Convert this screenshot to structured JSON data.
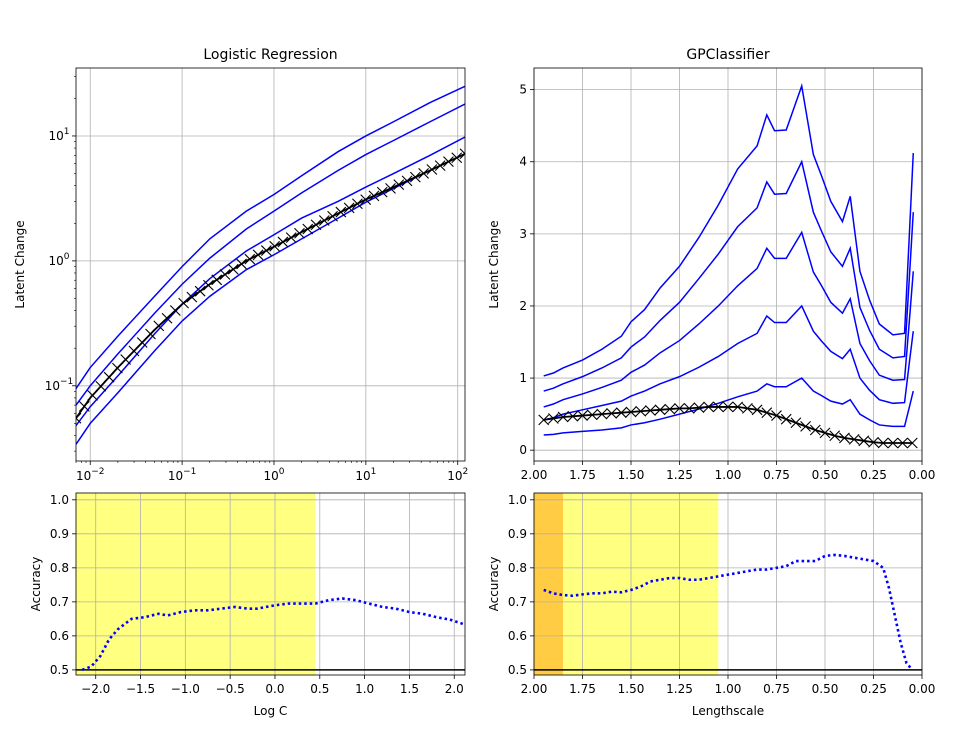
{
  "chart_data": [
    {
      "id": "lr_top",
      "type": "line",
      "title": "Logistic Regression",
      "xlabel": "",
      "ylabel": "Latent Change",
      "xscale": "log",
      "yscale": "log",
      "xlim": [
        0.007,
        120
      ],
      "ylim": [
        0.025,
        35
      ],
      "grid": true,
      "xticks": [
        {
          "value": 0.01,
          "base": "10",
          "exp": "−2"
        },
        {
          "value": 0.1,
          "base": "10",
          "exp": "−1"
        },
        {
          "value": 1,
          "base": "10",
          "exp": "0"
        },
        {
          "value": 10,
          "base": "10",
          "exp": "1"
        },
        {
          "value": 100,
          "base": "10",
          "exp": "2"
        }
      ],
      "yticks": [
        {
          "value": 0.1,
          "base": "10",
          "exp": "−1"
        },
        {
          "value": 1,
          "base": "10",
          "exp": "0"
        },
        {
          "value": 10,
          "base": "10",
          "exp": "1"
        }
      ],
      "colors": {
        "series": "#0000ff",
        "mean": "#000000"
      },
      "x": [
        0.007,
        0.01,
        0.02,
        0.05,
        0.1,
        0.2,
        0.5,
        1,
        2,
        5,
        10,
        20,
        50,
        120
      ],
      "series": [
        {
          "values": [
            0.095,
            0.14,
            0.25,
            0.52,
            0.9,
            1.5,
            2.5,
            3.4,
            4.8,
            7.5,
            10.0,
            13.0,
            18.5,
            25.0
          ]
        },
        {
          "values": [
            0.07,
            0.1,
            0.18,
            0.38,
            0.65,
            1.05,
            1.8,
            2.5,
            3.5,
            5.3,
            7.1,
            9.2,
            13.0,
            18.0
          ]
        },
        {
          "values": [
            0.048,
            0.068,
            0.12,
            0.26,
            0.45,
            0.72,
            1.2,
            1.62,
            2.2,
            3.0,
            3.9,
            5.0,
            7.0,
            9.8
          ]
        },
        {
          "values": [
            0.034,
            0.05,
            0.088,
            0.19,
            0.33,
            0.52,
            0.85,
            1.12,
            1.5,
            2.2,
            2.95,
            3.8,
            5.3,
            7.2
          ]
        }
      ],
      "mean": {
        "values": [
          0.055,
          0.08,
          0.14,
          0.28,
          0.45,
          0.65,
          1.0,
          1.3,
          1.7,
          2.4,
          3.1,
          3.9,
          5.3,
          7.2
        ],
        "marker": "x"
      }
    },
    {
      "id": "gp_top",
      "type": "line",
      "title": "GPClassifier",
      "xlabel": "",
      "ylabel": "Latent Change",
      "xlim": [
        2.0,
        0.0
      ],
      "ylim": [
        -0.15,
        5.3
      ],
      "grid": true,
      "xticks": [
        "2.00",
        "1.75",
        "1.50",
        "1.25",
        "1.00",
        "0.75",
        "0.50",
        "0.25",
        "0.00"
      ],
      "yticks": [
        "0",
        "1",
        "2",
        "3",
        "4",
        "5"
      ],
      "colors": {
        "series": "#0000ff",
        "mean": "#000000"
      },
      "x": [
        1.95,
        1.9,
        1.85,
        1.75,
        1.65,
        1.55,
        1.5,
        1.43,
        1.35,
        1.25,
        1.15,
        1.05,
        0.95,
        0.85,
        0.8,
        0.76,
        0.7,
        0.62,
        0.56,
        0.52,
        0.47,
        0.41,
        0.37,
        0.32,
        0.27,
        0.22,
        0.15,
        0.09,
        0.065,
        0.045
      ],
      "series": [
        {
          "values": [
            1.03,
            1.07,
            1.14,
            1.25,
            1.4,
            1.58,
            1.78,
            1.95,
            2.25,
            2.55,
            2.95,
            3.4,
            3.9,
            4.22,
            4.65,
            4.43,
            4.44,
            5.05,
            4.1,
            3.82,
            3.45,
            3.17,
            3.52,
            2.48,
            2.08,
            1.75,
            1.6,
            1.62,
            3.0,
            4.12
          ]
        },
        {
          "values": [
            0.82,
            0.86,
            0.92,
            1.02,
            1.14,
            1.28,
            1.43,
            1.57,
            1.8,
            2.05,
            2.38,
            2.72,
            3.1,
            3.36,
            3.72,
            3.55,
            3.56,
            4.0,
            3.3,
            3.05,
            2.75,
            2.55,
            2.8,
            1.98,
            1.66,
            1.4,
            1.28,
            1.3,
            2.4,
            3.3
          ]
        },
        {
          "values": [
            0.6,
            0.64,
            0.7,
            0.78,
            0.87,
            0.97,
            1.08,
            1.18,
            1.35,
            1.52,
            1.75,
            2.0,
            2.28,
            2.52,
            2.8,
            2.66,
            2.66,
            3.02,
            2.47,
            2.29,
            2.05,
            1.9,
            2.1,
            1.48,
            1.24,
            1.04,
            0.97,
            0.98,
            1.8,
            2.48
          ]
        },
        {
          "values": [
            0.42,
            0.45,
            0.5,
            0.56,
            0.62,
            0.68,
            0.75,
            0.82,
            0.92,
            1.02,
            1.15,
            1.3,
            1.48,
            1.62,
            1.86,
            1.77,
            1.77,
            2.0,
            1.65,
            1.52,
            1.37,
            1.27,
            1.4,
            1.0,
            0.83,
            0.7,
            0.65,
            0.66,
            1.22,
            1.65
          ]
        },
        {
          "values": [
            0.21,
            0.22,
            0.24,
            0.26,
            0.28,
            0.31,
            0.35,
            0.38,
            0.43,
            0.5,
            0.57,
            0.65,
            0.74,
            0.82,
            0.92,
            0.88,
            0.88,
            1.0,
            0.82,
            0.76,
            0.68,
            0.64,
            0.7,
            0.5,
            0.42,
            0.35,
            0.33,
            0.33,
            0.6,
            0.82
          ]
        }
      ],
      "mean": {
        "x": [
          1.95,
          1.9,
          1.85,
          1.8,
          1.75,
          1.7,
          1.65,
          1.6,
          1.55,
          1.5,
          1.45,
          1.4,
          1.35,
          1.3,
          1.25,
          1.2,
          1.15,
          1.1,
          1.05,
          1.0,
          0.95,
          0.9,
          0.85,
          0.8,
          0.75,
          0.7,
          0.65,
          0.6,
          0.55,
          0.5,
          0.45,
          0.4,
          0.35,
          0.3,
          0.25,
          0.2,
          0.15,
          0.1,
          0.05
        ],
        "values": [
          0.42,
          0.44,
          0.46,
          0.47,
          0.48,
          0.49,
          0.5,
          0.51,
          0.52,
          0.53,
          0.54,
          0.55,
          0.56,
          0.57,
          0.58,
          0.58,
          0.59,
          0.6,
          0.6,
          0.6,
          0.6,
          0.58,
          0.56,
          0.52,
          0.48,
          0.43,
          0.38,
          0.33,
          0.28,
          0.24,
          0.2,
          0.17,
          0.15,
          0.13,
          0.11,
          0.1,
          0.1,
          0.1,
          0.1
        ],
        "marker": "x"
      }
    },
    {
      "id": "lr_bottom",
      "type": "line",
      "title": "",
      "xlabel": "Log C",
      "ylabel": "Accuracy",
      "xlim": [
        -2.22,
        2.12
      ],
      "ylim": [
        0.485,
        1.02
      ],
      "grid": true,
      "xticks": [
        {
          "value": -2.0,
          "label": "−2.0"
        },
        {
          "value": -1.5,
          "label": "−1.5"
        },
        {
          "value": -1.0,
          "label": "−1.0"
        },
        {
          "value": -0.5,
          "label": "−0.5"
        },
        {
          "value": 0.0,
          "label": "0.0"
        },
        {
          "value": 0.5,
          "label": "0.5"
        },
        {
          "value": 1.0,
          "label": "1.0"
        },
        {
          "value": 1.5,
          "label": "1.5"
        },
        {
          "value": 2.0,
          "label": "2.0"
        }
      ],
      "yticks": [
        "0.5",
        "0.6",
        "0.7",
        "0.8",
        "0.9",
        "1.0"
      ],
      "highlight": {
        "x_range": [
          -2.22,
          0.45
        ],
        "color": "#ffff80"
      },
      "baseline": 0.5,
      "colors": {
        "accuracy": "#0000ff",
        "baseline": "#000000"
      },
      "x": [
        -2.15,
        -2.05,
        -1.95,
        -1.85,
        -1.75,
        -1.6,
        -1.45,
        -1.3,
        -1.2,
        -1.05,
        -0.9,
        -0.75,
        -0.6,
        -0.45,
        -0.3,
        -0.2,
        -0.1,
        0.0,
        0.15,
        0.3,
        0.45,
        0.6,
        0.75,
        0.9,
        1.05,
        1.2,
        1.35,
        1.5,
        1.65,
        1.8,
        1.95,
        2.1
      ],
      "values": [
        0.5,
        0.51,
        0.54,
        0.59,
        0.62,
        0.65,
        0.655,
        0.665,
        0.66,
        0.67,
        0.675,
        0.675,
        0.68,
        0.685,
        0.68,
        0.68,
        0.685,
        0.69,
        0.695,
        0.695,
        0.695,
        0.705,
        0.71,
        0.705,
        0.695,
        0.685,
        0.68,
        0.67,
        0.665,
        0.655,
        0.648,
        0.635
      ]
    },
    {
      "id": "gp_bottom",
      "type": "line",
      "title": "",
      "xlabel": "Lengthscale",
      "ylabel": "Accuracy",
      "xlim": [
        2.0,
        0.0
      ],
      "ylim": [
        0.485,
        1.02
      ],
      "grid": true,
      "xticks": [
        "2.00",
        "1.75",
        "1.50",
        "1.25",
        "1.00",
        "0.75",
        "0.50",
        "0.25",
        "0.00"
      ],
      "yticks": [
        "0.5",
        "0.6",
        "0.7",
        "0.8",
        "0.9",
        "1.0"
      ],
      "highlights": [
        {
          "x_range": [
            2.0,
            1.85
          ],
          "color": "#ffcc44"
        },
        {
          "x_range": [
            1.85,
            1.05
          ],
          "color": "#ffff80"
        }
      ],
      "baseline": 0.5,
      "colors": {
        "accuracy": "#0000ff",
        "baseline": "#000000"
      },
      "x": [
        1.95,
        1.9,
        1.85,
        1.8,
        1.75,
        1.7,
        1.65,
        1.6,
        1.55,
        1.5,
        1.45,
        1.4,
        1.35,
        1.3,
        1.25,
        1.2,
        1.15,
        1.1,
        1.05,
        1.0,
        0.95,
        0.9,
        0.85,
        0.8,
        0.75,
        0.7,
        0.65,
        0.6,
        0.55,
        0.5,
        0.45,
        0.4,
        0.35,
        0.3,
        0.25,
        0.2,
        0.17,
        0.14,
        0.11,
        0.08,
        0.05
      ],
      "values": [
        0.735,
        0.725,
        0.72,
        0.718,
        0.722,
        0.725,
        0.725,
        0.73,
        0.728,
        0.735,
        0.745,
        0.76,
        0.765,
        0.77,
        0.77,
        0.765,
        0.765,
        0.77,
        0.775,
        0.78,
        0.785,
        0.79,
        0.795,
        0.795,
        0.8,
        0.805,
        0.82,
        0.82,
        0.82,
        0.835,
        0.838,
        0.835,
        0.83,
        0.825,
        0.82,
        0.8,
        0.74,
        0.66,
        0.58,
        0.52,
        0.5
      ]
    }
  ]
}
